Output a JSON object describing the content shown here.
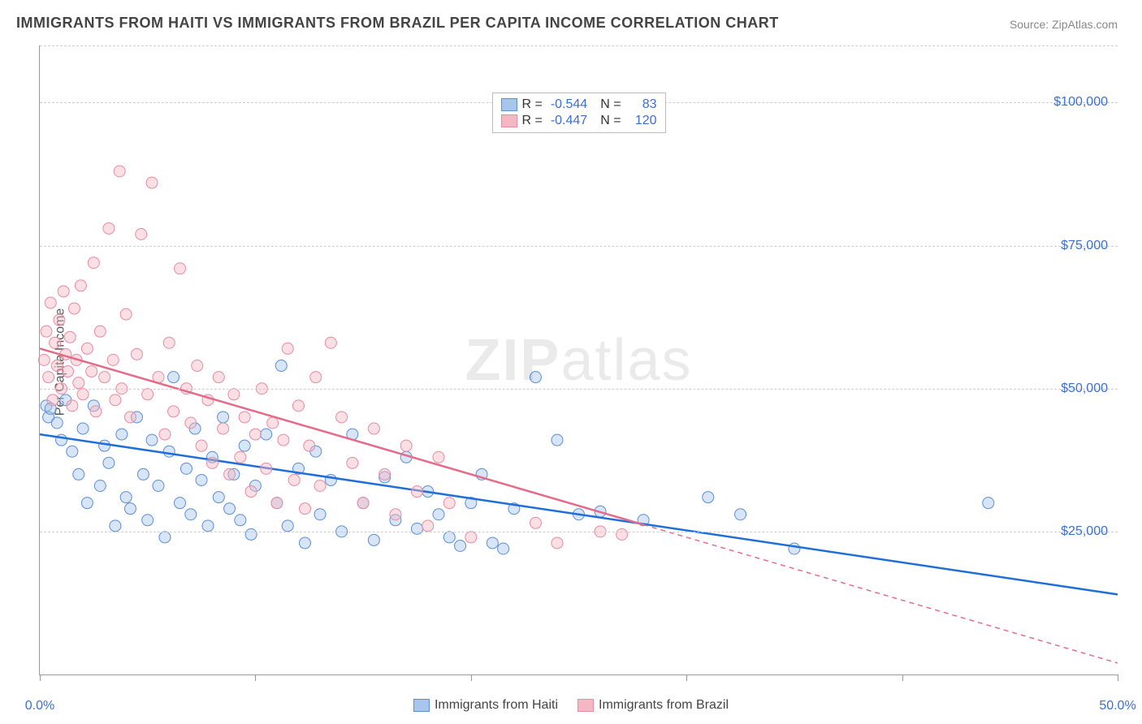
{
  "title": "IMMIGRANTS FROM HAITI VS IMMIGRANTS FROM BRAZIL PER CAPITA INCOME CORRELATION CHART",
  "source_prefix": "Source: ",
  "source_link": "ZipAtlas.com",
  "ylabel": "Per Capita Income",
  "watermark": {
    "bold": "ZIP",
    "light": "atlas"
  },
  "chart": {
    "type": "scatter",
    "xlim": [
      0,
      50
    ],
    "ylim": [
      0,
      110000
    ],
    "x_ticks": [
      0,
      10,
      20,
      30,
      40,
      50
    ],
    "x_tick_labels": {
      "0": "0.0%",
      "50": "50.0%"
    },
    "y_gridlines": [
      25000,
      50000,
      75000,
      100000,
      110000
    ],
    "y_tick_labels": {
      "25000": "$25,000",
      "50000": "$50,000",
      "75000": "$75,000",
      "100000": "$100,000"
    },
    "grid_color": "#cccccc",
    "axis_color": "#999999",
    "background_color": "#ffffff",
    "marker_radius": 7,
    "marker_opacity": 0.45,
    "line_width": 2.5,
    "series": [
      {
        "id": "haiti",
        "label": "Immigrants from Haiti",
        "color_fill": "#a8c5ec",
        "color_stroke": "#5b8fd6",
        "line_color": "#1f6fd6",
        "R": "-0.544",
        "N": "83",
        "trend": {
          "x0": 0,
          "y0": 42000,
          "x1": 50,
          "y1": 14000,
          "dash_from_x": null
        },
        "points": [
          [
            0.3,
            47000
          ],
          [
            0.4,
            45000
          ],
          [
            0.5,
            46500
          ],
          [
            0.8,
            44000
          ],
          [
            1.0,
            41000
          ],
          [
            1.2,
            48000
          ],
          [
            1.5,
            39000
          ],
          [
            1.8,
            35000
          ],
          [
            2.0,
            43000
          ],
          [
            2.2,
            30000
          ],
          [
            2.5,
            47000
          ],
          [
            2.8,
            33000
          ],
          [
            3.0,
            40000
          ],
          [
            3.2,
            37000
          ],
          [
            3.5,
            26000
          ],
          [
            3.8,
            42000
          ],
          [
            4.0,
            31000
          ],
          [
            4.2,
            29000
          ],
          [
            4.5,
            45000
          ],
          [
            4.8,
            35000
          ],
          [
            5.0,
            27000
          ],
          [
            5.2,
            41000
          ],
          [
            5.5,
            33000
          ],
          [
            5.8,
            24000
          ],
          [
            6.0,
            39000
          ],
          [
            6.2,
            52000
          ],
          [
            6.5,
            30000
          ],
          [
            6.8,
            36000
          ],
          [
            7.0,
            28000
          ],
          [
            7.2,
            43000
          ],
          [
            7.5,
            34000
          ],
          [
            7.8,
            26000
          ],
          [
            8.0,
            38000
          ],
          [
            8.3,
            31000
          ],
          [
            8.5,
            45000
          ],
          [
            8.8,
            29000
          ],
          [
            9.0,
            35000
          ],
          [
            9.3,
            27000
          ],
          [
            9.5,
            40000
          ],
          [
            9.8,
            24500
          ],
          [
            10.0,
            33000
          ],
          [
            10.5,
            42000
          ],
          [
            11.0,
            30000
          ],
          [
            11.2,
            54000
          ],
          [
            11.5,
            26000
          ],
          [
            12.0,
            36000
          ],
          [
            12.3,
            23000
          ],
          [
            12.8,
            39000
          ],
          [
            13.0,
            28000
          ],
          [
            13.5,
            34000
          ],
          [
            14.0,
            25000
          ],
          [
            14.5,
            42000
          ],
          [
            15.0,
            30000
          ],
          [
            15.5,
            23500
          ],
          [
            16.0,
            34500
          ],
          [
            16.5,
            27000
          ],
          [
            17.0,
            38000
          ],
          [
            17.5,
            25500
          ],
          [
            18.0,
            32000
          ],
          [
            18.5,
            28000
          ],
          [
            19.0,
            24000
          ],
          [
            19.5,
            22500
          ],
          [
            20.0,
            30000
          ],
          [
            20.5,
            35000
          ],
          [
            21.0,
            23000
          ],
          [
            21.5,
            22000
          ],
          [
            22.0,
            29000
          ],
          [
            23.0,
            52000
          ],
          [
            24.0,
            41000
          ],
          [
            25.0,
            28000
          ],
          [
            26.0,
            28500
          ],
          [
            28.0,
            27000
          ],
          [
            31.0,
            31000
          ],
          [
            32.5,
            28000
          ],
          [
            35.0,
            22000
          ],
          [
            44.0,
            30000
          ]
        ]
      },
      {
        "id": "brazil",
        "label": "Immigrants from Brazil",
        "color_fill": "#f4b8c5",
        "color_stroke": "#e88ba3",
        "line_color": "#e56b8a",
        "R": "-0.447",
        "N": "120",
        "trend": {
          "x0": 0,
          "y0": 57000,
          "x1": 50,
          "y1": 2000,
          "dash_from_x": 28
        },
        "points": [
          [
            0.2,
            55000
          ],
          [
            0.3,
            60000
          ],
          [
            0.4,
            52000
          ],
          [
            0.5,
            65000
          ],
          [
            0.6,
            48000
          ],
          [
            0.7,
            58000
          ],
          [
            0.8,
            54000
          ],
          [
            0.9,
            62000
          ],
          [
            1.0,
            50000
          ],
          [
            1.1,
            67000
          ],
          [
            1.2,
            56000
          ],
          [
            1.3,
            53000
          ],
          [
            1.4,
            59000
          ],
          [
            1.5,
            47000
          ],
          [
            1.6,
            64000
          ],
          [
            1.7,
            55000
          ],
          [
            1.8,
            51000
          ],
          [
            1.9,
            68000
          ],
          [
            2.0,
            49000
          ],
          [
            2.2,
            57000
          ],
          [
            2.4,
            53000
          ],
          [
            2.5,
            72000
          ],
          [
            2.6,
            46000
          ],
          [
            2.8,
            60000
          ],
          [
            3.0,
            52000
          ],
          [
            3.2,
            78000
          ],
          [
            3.4,
            55000
          ],
          [
            3.5,
            48000
          ],
          [
            3.7,
            88000
          ],
          [
            3.8,
            50000
          ],
          [
            4.0,
            63000
          ],
          [
            4.2,
            45000
          ],
          [
            4.5,
            56000
          ],
          [
            4.7,
            77000
          ],
          [
            5.0,
            49000
          ],
          [
            5.2,
            86000
          ],
          [
            5.5,
            52000
          ],
          [
            5.8,
            42000
          ],
          [
            6.0,
            58000
          ],
          [
            6.2,
            46000
          ],
          [
            6.5,
            71000
          ],
          [
            6.8,
            50000
          ],
          [
            7.0,
            44000
          ],
          [
            7.3,
            54000
          ],
          [
            7.5,
            40000
          ],
          [
            7.8,
            48000
          ],
          [
            8.0,
            37000
          ],
          [
            8.3,
            52000
          ],
          [
            8.5,
            43000
          ],
          [
            8.8,
            35000
          ],
          [
            9.0,
            49000
          ],
          [
            9.3,
            38000
          ],
          [
            9.5,
            45000
          ],
          [
            9.8,
            32000
          ],
          [
            10.0,
            42000
          ],
          [
            10.3,
            50000
          ],
          [
            10.5,
            36000
          ],
          [
            10.8,
            44000
          ],
          [
            11.0,
            30000
          ],
          [
            11.3,
            41000
          ],
          [
            11.5,
            57000
          ],
          [
            11.8,
            34000
          ],
          [
            12.0,
            47000
          ],
          [
            12.3,
            29000
          ],
          [
            12.5,
            40000
          ],
          [
            12.8,
            52000
          ],
          [
            13.0,
            33000
          ],
          [
            13.5,
            58000
          ],
          [
            14.0,
            45000
          ],
          [
            14.5,
            37000
          ],
          [
            15.0,
            30000
          ],
          [
            15.5,
            43000
          ],
          [
            16.0,
            35000
          ],
          [
            16.5,
            28000
          ],
          [
            17.0,
            40000
          ],
          [
            17.5,
            32000
          ],
          [
            18.0,
            26000
          ],
          [
            18.5,
            38000
          ],
          [
            19.0,
            30000
          ],
          [
            20.0,
            24000
          ],
          [
            23.0,
            26500
          ],
          [
            24.0,
            23000
          ],
          [
            26.0,
            25000
          ],
          [
            27.0,
            24500
          ]
        ]
      }
    ]
  },
  "bottom_legend": [
    {
      "label": "Immigrants from Haiti",
      "fill": "#a8c5ec",
      "stroke": "#5b8fd6"
    },
    {
      "label": "Immigrants from Brazil",
      "fill": "#f4b8c5",
      "stroke": "#e88ba3"
    }
  ]
}
